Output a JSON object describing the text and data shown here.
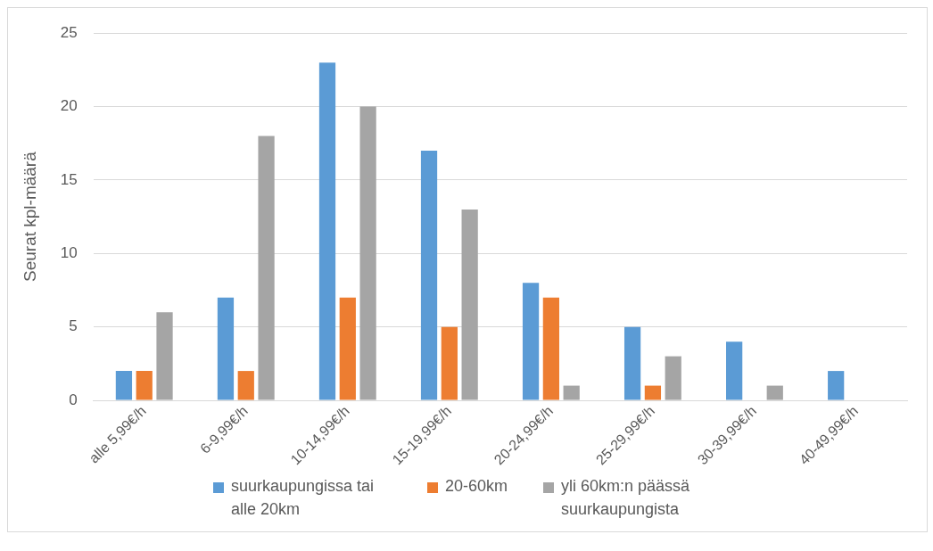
{
  "chart_data": {
    "type": "bar",
    "ylabel": "Seurat kpl-määrä",
    "categories": [
      "alle 5,99€/h",
      "6-9,99€/h",
      "10-14,99€/h",
      "15-19,99€/h",
      "20-24,99€/h",
      "25-29,99€/h",
      "30-39,99€/h",
      "40-49,99€/h"
    ],
    "series": [
      {
        "name": "suurkaupungissa tai alle 20km",
        "color": "#5b9bd5",
        "values": [
          2,
          7,
          23,
          17,
          8,
          5,
          4,
          2
        ]
      },
      {
        "name": "20-60km",
        "color": "#ed7d31",
        "values": [
          2,
          2,
          7,
          5,
          7,
          1,
          0,
          0
        ]
      },
      {
        "name": "yli 60km:n päässä suurkaupungista",
        "color": "#a5a5a5",
        "values": [
          6,
          18,
          20,
          13,
          1,
          3,
          1,
          0
        ]
      }
    ],
    "ylim": [
      0,
      25
    ],
    "yticks": [
      0,
      5,
      10,
      15,
      20,
      25
    ],
    "grid": "y",
    "legend": "bottom"
  }
}
